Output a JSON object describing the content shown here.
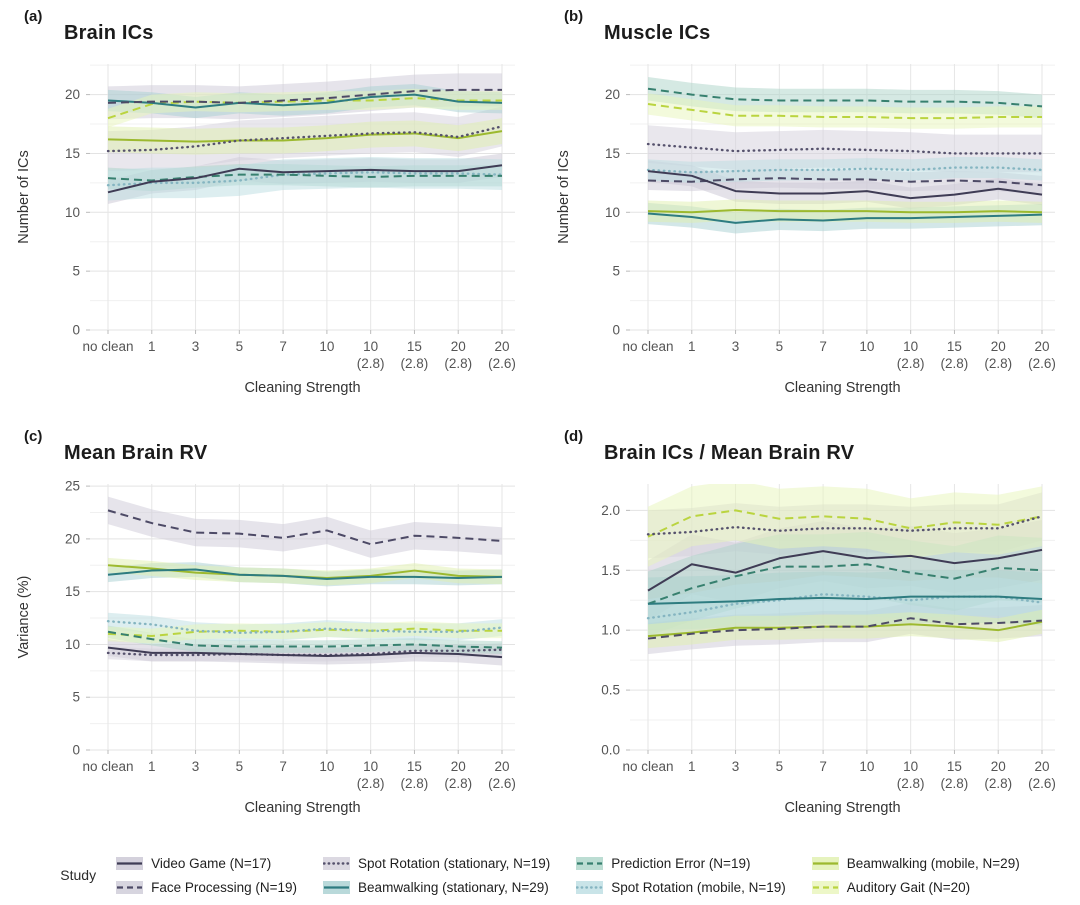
{
  "figure": {
    "legend": {
      "title": "Study",
      "items": [
        {
          "label": "Video Game (N=17)",
          "study": "video_game"
        },
        {
          "label": "Face Processing (N=19)",
          "study": "face_processing"
        },
        {
          "label": "Spot Rotation (stationary, N=19)",
          "study": "spot_rotation_stationary"
        },
        {
          "label": "Beamwalking (stationary, N=29)",
          "study": "beamwalking_stationary"
        },
        {
          "label": "Prediction Error (N=19)",
          "study": "prediction_error"
        },
        {
          "label": "Spot Rotation (mobile, N=19)",
          "study": "spot_rotation_mobile"
        },
        {
          "label": "Beamwalking (mobile, N=29)",
          "study": "beamwalking_mobile"
        },
        {
          "label": "Auditory Gait (N=20)",
          "study": "auditory_gait"
        }
      ]
    }
  },
  "studies": {
    "video_game": {
      "color": "#3f3c55",
      "band": "#c9c6d3",
      "dash": "solid"
    },
    "face_processing": {
      "color": "#4d4a66",
      "band": "#cdcad7",
      "dash": "dashed"
    },
    "spot_rotation_stationary": {
      "color": "#56526d",
      "band": "#d3d0db",
      "dash": "dotted"
    },
    "beamwalking_stationary": {
      "color": "#2e7c80",
      "band": "#a7d0d1",
      "dash": "solid"
    },
    "prediction_error": {
      "color": "#37806f",
      "band": "#abd4c8",
      "dash": "dashed"
    },
    "spot_rotation_mobile": {
      "color": "#85b5c1",
      "band": "#bcdde2",
      "dash": "dotted"
    },
    "beamwalking_mobile": {
      "color": "#9cb92f",
      "band": "#e0f0ae",
      "dash": "solid"
    },
    "auditory_gait": {
      "color": "#bad43f",
      "band": "#e8f5ba",
      "dash": "dashed"
    }
  },
  "chart_data": [
    {
      "type": "line",
      "panel_label": "(a)",
      "title": "Brain ICs",
      "xlabel": "Cleaning Strength",
      "ylabel": "Number of ICs",
      "xticks": [
        "no clean",
        "1",
        "3",
        "5",
        "7",
        "10",
        "10\n(2.8)",
        "15\n(2.8)",
        "20\n(2.8)",
        "20\n(2.6)"
      ],
      "ylim": [
        0,
        22.6
      ],
      "yticks": {
        "values": [
          0,
          5,
          10,
          15,
          20
        ],
        "labels": [
          "0",
          "5",
          "10",
          "15",
          "20"
        ]
      },
      "grid": true,
      "series": [
        {
          "study": "video_game",
          "values": [
            11.7,
            12.6,
            12.9,
            13.7,
            13.4,
            13.5,
            13.6,
            13.5,
            13.5,
            14.0
          ],
          "band": 1.0
        },
        {
          "study": "face_processing",
          "values": [
            19.3,
            19.4,
            19.4,
            19.3,
            19.5,
            19.7,
            20.0,
            20.3,
            20.4,
            20.4
          ],
          "band": 1.4
        },
        {
          "study": "spot_rotation_stationary",
          "values": [
            15.2,
            15.3,
            15.6,
            16.1,
            16.3,
            16.5,
            16.7,
            16.8,
            16.4,
            17.3
          ],
          "band": 1.7
        },
        {
          "study": "beamwalking_stationary",
          "values": [
            19.5,
            19.3,
            18.9,
            19.3,
            19.1,
            19.3,
            19.8,
            20.0,
            19.4,
            19.3
          ],
          "band": 0.9
        },
        {
          "study": "prediction_error",
          "values": [
            12.9,
            12.7,
            13.0,
            13.2,
            13.2,
            13.1,
            13.0,
            13.1,
            13.1,
            13.1
          ],
          "band": 0.9
        },
        {
          "study": "spot_rotation_mobile",
          "values": [
            12.3,
            12.5,
            12.5,
            12.7,
            13.2,
            13.3,
            13.4,
            13.3,
            13.3,
            13.2
          ],
          "band": 1.3
        },
        {
          "study": "beamwalking_mobile",
          "values": [
            16.2,
            16.1,
            16.0,
            16.1,
            16.1,
            16.3,
            16.6,
            16.7,
            16.3,
            16.9
          ],
          "band": 1.1
        },
        {
          "study": "auditory_gait",
          "values": [
            18.0,
            19.2,
            19.4,
            19.3,
            19.4,
            19.5,
            19.5,
            19.7,
            19.5,
            19.5
          ],
          "band": 0.8
        }
      ]
    },
    {
      "type": "line",
      "panel_label": "(b)",
      "title": "Muscle ICs",
      "xlabel": "Cleaning Strength",
      "ylabel": "Number of ICs",
      "xticks": [
        "no clean",
        "1",
        "3",
        "5",
        "7",
        "10",
        "10\n(2.8)",
        "15\n(2.8)",
        "20\n(2.8)",
        "20\n(2.6)"
      ],
      "ylim": [
        0,
        22.6
      ],
      "yticks": {
        "values": [
          0,
          5,
          10,
          15,
          20
        ],
        "labels": [
          "0",
          "5",
          "10",
          "15",
          "20"
        ]
      },
      "grid": true,
      "series": [
        {
          "study": "video_game",
          "values": [
            13.5,
            13.1,
            11.8,
            11.6,
            11.6,
            11.8,
            11.2,
            11.5,
            12.0,
            11.5
          ],
          "band": 0.9
        },
        {
          "study": "face_processing",
          "values": [
            12.7,
            12.6,
            12.8,
            12.9,
            12.8,
            12.8,
            12.6,
            12.7,
            12.6,
            12.3
          ],
          "band": 0.8
        },
        {
          "study": "spot_rotation_stationary",
          "values": [
            15.8,
            15.5,
            15.2,
            15.3,
            15.4,
            15.3,
            15.2,
            15.0,
            15.0,
            15.0
          ],
          "band": 1.6
        },
        {
          "study": "beamwalking_stationary",
          "values": [
            9.9,
            9.6,
            9.1,
            9.4,
            9.3,
            9.5,
            9.5,
            9.6,
            9.7,
            9.8
          ],
          "band": 0.9
        },
        {
          "study": "prediction_error",
          "values": [
            20.5,
            20.0,
            19.6,
            19.5,
            19.5,
            19.5,
            19.4,
            19.4,
            19.3,
            19.0
          ],
          "band": 1.0
        },
        {
          "study": "spot_rotation_mobile",
          "values": [
            13.6,
            13.4,
            13.5,
            13.6,
            13.6,
            13.7,
            13.6,
            13.8,
            13.8,
            13.6
          ],
          "band": 0.9
        },
        {
          "study": "beamwalking_mobile",
          "values": [
            10.1,
            10.0,
            10.2,
            10.1,
            10.1,
            10.1,
            10.0,
            10.0,
            10.1,
            10.0
          ],
          "band": 0.9
        },
        {
          "study": "auditory_gait",
          "values": [
            19.2,
            18.7,
            18.2,
            18.2,
            18.1,
            18.1,
            18.0,
            18.0,
            18.1,
            18.1
          ],
          "band": 0.9
        }
      ]
    },
    {
      "type": "line",
      "panel_label": "(c)",
      "title": "Mean Brain RV",
      "xlabel": "Cleaning Strength",
      "ylabel": "Variance (%)",
      "xticks": [
        "no clean",
        "1",
        "3",
        "5",
        "7",
        "10",
        "10\n(2.8)",
        "15\n(2.8)",
        "20\n(2.8)",
        "20\n(2.6)"
      ],
      "ylim": [
        0,
        25.2
      ],
      "yticks": {
        "values": [
          0,
          5,
          10,
          15,
          20,
          25
        ],
        "labels": [
          "0",
          "5",
          "10",
          "15",
          "20",
          "25"
        ]
      },
      "grid": true,
      "series": [
        {
          "study": "video_game",
          "values": [
            9.7,
            9.2,
            9.2,
            9.1,
            9.0,
            8.9,
            9.0,
            9.2,
            9.1,
            8.8
          ],
          "band": 0.8
        },
        {
          "study": "face_processing",
          "values": [
            22.7,
            21.5,
            20.6,
            20.5,
            20.1,
            20.8,
            19.5,
            20.3,
            20.1,
            19.8
          ],
          "band": 1.3
        },
        {
          "study": "spot_rotation_stationary",
          "values": [
            9.2,
            9.0,
            9.0,
            9.1,
            9.0,
            9.0,
            9.1,
            9.4,
            9.4,
            9.5
          ],
          "band": 0.6
        },
        {
          "study": "beamwalking_stationary",
          "values": [
            16.6,
            17.0,
            17.1,
            16.6,
            16.5,
            16.2,
            16.4,
            16.4,
            16.3,
            16.4
          ],
          "band": 0.7
        },
        {
          "study": "prediction_error",
          "values": [
            11.2,
            10.5,
            9.9,
            9.8,
            9.8,
            9.8,
            9.9,
            10.0,
            9.8,
            9.7
          ],
          "band": 0.6
        },
        {
          "study": "spot_rotation_mobile",
          "values": [
            12.2,
            11.9,
            11.3,
            11.1,
            11.2,
            11.5,
            11.3,
            11.2,
            11.2,
            11.6
          ],
          "band": 0.8
        },
        {
          "study": "beamwalking_mobile",
          "values": [
            17.5,
            17.2,
            16.8,
            16.6,
            16.5,
            16.3,
            16.5,
            17.0,
            16.5,
            16.4
          ],
          "band": 0.7
        },
        {
          "study": "auditory_gait",
          "values": [
            11.0,
            10.8,
            11.2,
            11.3,
            11.2,
            11.4,
            11.3,
            11.5,
            11.3,
            11.3
          ],
          "band": 0.7
        }
      ]
    },
    {
      "type": "line",
      "panel_label": "(d)",
      "title": "Brain ICs / Mean Brain RV",
      "xlabel": "Cleaning Strength",
      "ylabel": "",
      "xticks": [
        "no clean",
        "1",
        "3",
        "5",
        "7",
        "10",
        "10\n(2.8)",
        "15\n(2.8)",
        "20\n(2.8)",
        "20\n(2.6)"
      ],
      "ylim": [
        0,
        2.22
      ],
      "yticks": {
        "values": [
          0,
          0.5,
          1.0,
          1.5,
          2.0
        ],
        "labels": [
          "0.0",
          "0.5",
          "1.0",
          "1.5",
          "2.0"
        ]
      },
      "grid": true,
      "series": [
        {
          "study": "video_game",
          "values": [
            1.33,
            1.55,
            1.48,
            1.6,
            1.66,
            1.6,
            1.62,
            1.56,
            1.6,
            1.67
          ],
          "band": 0.25
        },
        {
          "study": "face_processing",
          "values": [
            0.93,
            0.97,
            1.0,
            1.01,
            1.03,
            1.03,
            1.1,
            1.05,
            1.06,
            1.08
          ],
          "band": 0.13
        },
        {
          "study": "spot_rotation_stationary",
          "values": [
            1.8,
            1.82,
            1.86,
            1.83,
            1.85,
            1.85,
            1.83,
            1.85,
            1.85,
            1.95
          ],
          "band": 0.2
        },
        {
          "study": "beamwalking_stationary",
          "values": [
            1.22,
            1.23,
            1.24,
            1.26,
            1.27,
            1.26,
            1.28,
            1.28,
            1.28,
            1.26
          ],
          "band": 0.22
        },
        {
          "study": "prediction_error",
          "values": [
            1.22,
            1.35,
            1.45,
            1.53,
            1.53,
            1.55,
            1.48,
            1.43,
            1.52,
            1.5
          ],
          "band": 0.27
        },
        {
          "study": "spot_rotation_mobile",
          "values": [
            1.1,
            1.15,
            1.22,
            1.25,
            1.3,
            1.28,
            1.25,
            1.28,
            1.28,
            1.23
          ],
          "band": 0.16
        },
        {
          "study": "beamwalking_mobile",
          "values": [
            0.95,
            0.98,
            1.02,
            1.02,
            1.03,
            1.03,
            1.05,
            1.03,
            1.0,
            1.07
          ],
          "band": 0.1
        },
        {
          "study": "auditory_gait",
          "values": [
            1.78,
            1.95,
            2.0,
            1.93,
            1.95,
            1.93,
            1.85,
            1.9,
            1.88,
            1.95
          ],
          "band": 0.25
        }
      ]
    }
  ]
}
